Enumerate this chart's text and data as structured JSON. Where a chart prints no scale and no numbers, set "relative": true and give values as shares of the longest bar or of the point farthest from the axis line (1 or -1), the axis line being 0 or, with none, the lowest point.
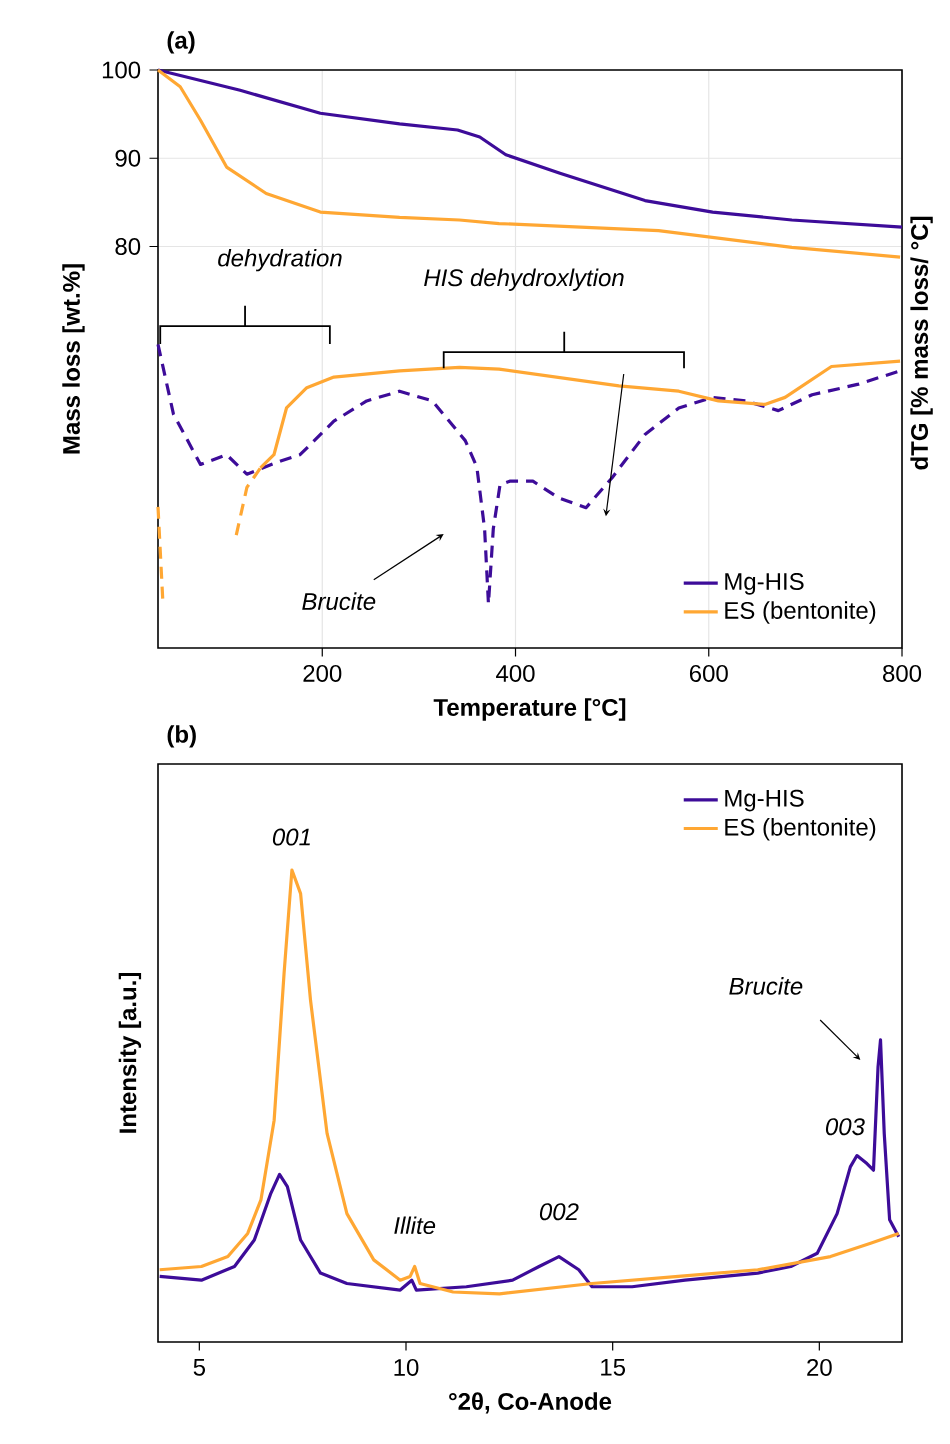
{
  "chart_data": [
    {
      "type": "line",
      "xlabel": "Temperature [°C]",
      "ylabel": "Mass loss [wt.%]",
      "y2label": "dTG [% mass loss/ °C]",
      "xlim": [
        30,
        800
      ],
      "xticks": [
        200,
        400,
        600,
        800
      ],
      "ylim": [
        34.5,
        100
      ],
      "yticks": [
        80,
        90,
        100
      ],
      "grid": true,
      "legend": "bottom right",
      "annotations": [
        "(a)",
        "dehydration",
        "HIS dehydroxlytion",
        "Brucite"
      ],
      "series": [
        {
          "name": "Mg-HIS",
          "color": "#3d0c99",
          "x": [
            30,
            115,
            198,
            280,
            340,
            363,
            390,
            446,
            534,
            604,
            686,
            800
          ],
          "values": [
            100,
            97.7,
            95.1,
            93.9,
            93.2,
            92.4,
            90.4,
            88.3,
            85.2,
            83.9,
            83.0,
            82.2
          ]
        },
        {
          "name": "ES (bentonite)",
          "color": "#ffa733",
          "x": [
            30,
            53,
            74,
            101,
            142,
            198,
            280,
            342,
            383,
            548,
            686,
            798
          ],
          "values": [
            100,
            98.1,
            94.3,
            89.0,
            86.0,
            83.9,
            83.3,
            83.0,
            82.6,
            81.8,
            79.9,
            78.8
          ]
        },
        {
          "color": "#3d0c99",
          "line_style": "dashed",
          "x": [
            30,
            46,
            74,
            101,
            122,
            157,
            177,
            212,
            246,
            280,
            314,
            348,
            360,
            368,
            372,
            377,
            384,
            394,
            418,
            445,
            473,
            500,
            534,
            569,
            604,
            638,
            672,
            707,
            755,
            798
          ],
          "values": [
            68.9,
            61.0,
            55.3,
            56.4,
            54.2,
            55.7,
            56.4,
            60.2,
            62.5,
            63.6,
            62.5,
            58.0,
            55.0,
            48.0,
            39.5,
            48.0,
            53.0,
            53.4,
            53.4,
            51.5,
            50.4,
            53.8,
            58.7,
            61.7,
            62.9,
            62.5,
            61.4,
            63.2,
            64.4,
            65.9
          ]
        },
        {
          "color": "#ffa733",
          "line_style": "dashed",
          "x": [
            30,
            35,
            37,
            70,
            104,
            111,
            122,
            136
          ],
          "values": [
            50.5,
            39.8,
            null,
            null,
            null,
            47.3,
            52.7,
            54.9
          ]
        },
        {
          "color": "#ffa733",
          "x": [
            136,
            150,
            163,
            184,
            212,
            280,
            342,
            383,
            507,
            569,
            610,
            658,
            679,
            727,
            798
          ],
          "values": [
            54.9,
            56.4,
            61.7,
            64.0,
            65.2,
            65.9,
            66.3,
            66.1,
            64.2,
            63.6,
            62.5,
            62.1,
            62.9,
            66.4,
            67.0
          ]
        }
      ]
    },
    {
      "type": "line",
      "xlabel": "°2θ, Co-Anode",
      "ylabel": "Intensity [a.u.]",
      "xlim": [
        4,
        22
      ],
      "xticks": [
        5,
        10,
        15,
        20
      ],
      "relative": true,
      "legend": "top right",
      "annotations": [
        "(b)",
        {
          "text": "001",
          "x": 7.24,
          "y": 1.0
        },
        {
          "text": "Illite",
          "x": 10.21,
          "y": 0.16
        },
        {
          "text": "002",
          "x": 13.7,
          "y": 0.181
        },
        {
          "text": "003",
          "x": 20.91,
          "y": 0.395
        },
        "Brucite"
      ],
      "series": [
        {
          "name": "Mg-HIS",
          "color": "#3d0c99",
          "x": [
            4.04,
            5.05,
            5.85,
            6.33,
            6.73,
            6.94,
            7.13,
            7.45,
            7.93,
            8.57,
            9.86,
            10.14,
            10.25,
            11.46,
            12.58,
            13.22,
            13.7,
            14.18,
            14.5,
            15.47,
            16.75,
            18.51,
            19.31,
            19.95,
            20.43,
            20.75,
            20.91,
            21.15,
            21.31,
            21.42,
            21.48,
            21.57,
            21.7,
            21.92
          ],
          "values": [
            0.139,
            0.131,
            0.16,
            0.216,
            0.315,
            0.355,
            0.329,
            0.216,
            0.146,
            0.124,
            0.11,
            0.131,
            0.11,
            0.117,
            0.131,
            0.16,
            0.181,
            0.153,
            0.117,
            0.117,
            0.131,
            0.146,
            0.16,
            0.188,
            0.272,
            0.371,
            0.395,
            0.378,
            0.364,
            0.583,
            0.64,
            0.442,
            0.259,
            0.223
          ]
        },
        {
          "name": "ES (bentonite)",
          "color": "#ffa733",
          "x": [
            4.04,
            5.05,
            5.69,
            6.17,
            6.49,
            6.81,
            7.05,
            7.24,
            7.45,
            7.69,
            8.09,
            8.57,
            9.22,
            9.86,
            10.1,
            10.21,
            10.34,
            11.14,
            12.26,
            14.5,
            16.59,
            18.51,
            20.27,
            21.24,
            21.92
          ],
          "values": [
            0.153,
            0.16,
            0.181,
            0.23,
            0.301,
            0.47,
            0.781,
            1.0,
            0.95,
            0.724,
            0.442,
            0.272,
            0.174,
            0.131,
            0.139,
            0.16,
            0.124,
            0.106,
            0.102,
            0.124,
            0.139,
            0.153,
            0.181,
            0.209,
            0.23
          ]
        }
      ]
    }
  ]
}
